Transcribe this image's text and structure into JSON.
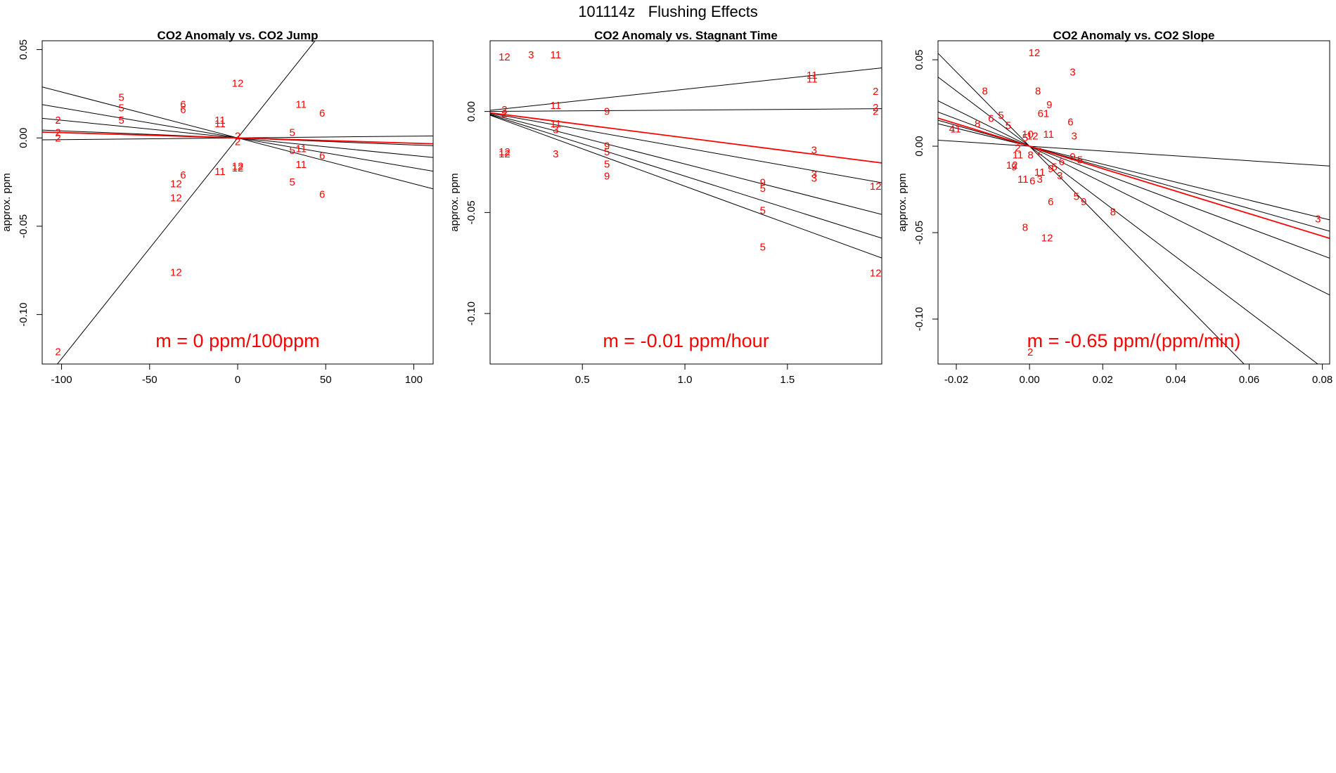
{
  "figure": {
    "title": "101114z",
    "subtitle": "Flushing Effects"
  },
  "colors": {
    "fit": "#ff0000",
    "line": "#000000",
    "label": "#ff0000"
  },
  "chart_data": [
    {
      "type": "scatter",
      "title": "CO2 Anomaly vs. CO2 Jump",
      "ylabel": "approx. ppm",
      "xlabel": "",
      "xlim": [
        -111,
        111
      ],
      "ylim": [
        -0.128,
        0.055
      ],
      "xticks": [
        -100,
        -50,
        0,
        50,
        100
      ],
      "xtick_labels": [
        "-100",
        "-50",
        "0",
        "50",
        "100"
      ],
      "yticks": [
        -0.1,
        -0.05,
        0.0,
        0.05
      ],
      "ytick_labels": [
        "-0.10",
        "-0.05",
        "0.00",
        "0.05"
      ],
      "annotation": "m = 0 ppm/100ppm",
      "points": [
        {
          "x": -66,
          "y": 0.023,
          "label": "5"
        },
        {
          "x": -66,
          "y": 0.017,
          "label": "5"
        },
        {
          "x": -66,
          "y": 0.01,
          "label": "5"
        },
        {
          "x": -102,
          "y": 0.01,
          "label": "2"
        },
        {
          "x": -102,
          "y": 0.003,
          "label": "2"
        },
        {
          "x": -102,
          "y": 0.0,
          "label": "2"
        },
        {
          "x": -31,
          "y": 0.019,
          "label": "6"
        },
        {
          "x": -31,
          "y": 0.016,
          "label": "6"
        },
        {
          "x": -10,
          "y": 0.01,
          "label": "11"
        },
        {
          "x": -10,
          "y": 0.008,
          "label": "11"
        },
        {
          "x": 0,
          "y": 0.031,
          "label": "12"
        },
        {
          "x": 0,
          "y": 0.001,
          "label": "2"
        },
        {
          "x": 0,
          "y": -0.002,
          "label": "2"
        },
        {
          "x": 36,
          "y": 0.019,
          "label": "11"
        },
        {
          "x": 48,
          "y": 0.014,
          "label": "6"
        },
        {
          "x": 31,
          "y": 0.003,
          "label": "5"
        },
        {
          "x": 31,
          "y": -0.007,
          "label": "5"
        },
        {
          "x": 36,
          "y": -0.006,
          "label": "11"
        },
        {
          "x": 48,
          "y": -0.01,
          "label": "6"
        },
        {
          "x": 36,
          "y": -0.015,
          "label": "11"
        },
        {
          "x": 0,
          "y": -0.016,
          "label": "12"
        },
        {
          "x": 0,
          "y": -0.017,
          "label": "12"
        },
        {
          "x": -10,
          "y": -0.019,
          "label": "11"
        },
        {
          "x": -31,
          "y": -0.021,
          "label": "6"
        },
        {
          "x": -35,
          "y": -0.026,
          "label": "12"
        },
        {
          "x": -35,
          "y": -0.034,
          "label": "12"
        },
        {
          "x": 31,
          "y": -0.025,
          "label": "5"
        },
        {
          "x": 48,
          "y": -0.032,
          "label": "6"
        },
        {
          "x": -35,
          "y": -0.076,
          "label": "12"
        },
        {
          "x": -102,
          "y": -0.121,
          "label": "2"
        }
      ],
      "fit_lines": [
        {
          "slope": 0.00125,
          "fit": false
        },
        {
          "slope": -0.00026,
          "fit": false
        },
        {
          "slope": -0.00017,
          "fit": false
        },
        {
          "slope": -0.0001,
          "fit": false
        },
        {
          "slope": 1e-05,
          "fit": false
        },
        {
          "slope": -4e-05,
          "fit": false
        },
        {
          "slope": -3e-05,
          "fit": true
        }
      ]
    },
    {
      "type": "scatter",
      "title": "CO2 Anomaly vs. Stagnant Time",
      "ylabel": "approx. ppm",
      "xlabel": "",
      "xlim": [
        0.05,
        1.96
      ],
      "ylim": [
        -0.125,
        0.035
      ],
      "xticks": [
        0.5,
        1.0,
        1.5
      ],
      "xtick_labels": [
        "0.5",
        "1.0",
        "1.5"
      ],
      "yticks": [
        -0.1,
        -0.05,
        0.0
      ],
      "ytick_labels": [
        "-0.10",
        "-0.05",
        "0.00"
      ],
      "annotation": "m = -0.01 ppm/hour",
      "points": [
        {
          "x": 0.12,
          "y": 0.027,
          "label": "12"
        },
        {
          "x": 0.25,
          "y": 0.028,
          "label": "3"
        },
        {
          "x": 0.37,
          "y": 0.028,
          "label": "11"
        },
        {
          "x": 0.12,
          "y": 0.001,
          "label": "2"
        },
        {
          "x": 0.12,
          "y": -0.001,
          "label": "2"
        },
        {
          "x": 0.37,
          "y": 0.003,
          "label": "11"
        },
        {
          "x": 0.62,
          "y": 0.0,
          "label": "9"
        },
        {
          "x": 0.37,
          "y": -0.006,
          "label": "11"
        },
        {
          "x": 0.37,
          "y": -0.009,
          "label": "3"
        },
        {
          "x": 0.12,
          "y": -0.02,
          "label": "12"
        },
        {
          "x": 0.12,
          "y": -0.021,
          "label": "12"
        },
        {
          "x": 0.37,
          "y": -0.021,
          "label": "3"
        },
        {
          "x": 0.62,
          "y": -0.017,
          "label": "9"
        },
        {
          "x": 0.62,
          "y": -0.02,
          "label": "5"
        },
        {
          "x": 0.62,
          "y": -0.026,
          "label": "5"
        },
        {
          "x": 0.62,
          "y": -0.032,
          "label": "9"
        },
        {
          "x": 1.62,
          "y": 0.018,
          "label": "11"
        },
        {
          "x": 1.62,
          "y": 0.016,
          "label": "11"
        },
        {
          "x": 1.93,
          "y": 0.01,
          "label": "2"
        },
        {
          "x": 1.93,
          "y": 0.002,
          "label": "2"
        },
        {
          "x": 1.93,
          "y": 0.0,
          "label": "2"
        },
        {
          "x": 1.63,
          "y": -0.019,
          "label": "3"
        },
        {
          "x": 1.63,
          "y": -0.031,
          "label": "3"
        },
        {
          "x": 1.63,
          "y": -0.033,
          "label": "3"
        },
        {
          "x": 1.93,
          "y": -0.037,
          "label": "12"
        },
        {
          "x": 1.38,
          "y": -0.035,
          "label": "9"
        },
        {
          "x": 1.38,
          "y": -0.038,
          "label": "5"
        },
        {
          "x": 1.38,
          "y": -0.049,
          "label": "5"
        },
        {
          "x": 1.38,
          "y": -0.067,
          "label": "5"
        },
        {
          "x": 1.93,
          "y": -0.08,
          "label": "12"
        }
      ],
      "fit_lines": [
        {
          "slope": 0.011,
          "fit": false
        },
        {
          "slope": 0.0007,
          "fit": false
        },
        {
          "slope": -0.018,
          "fit": false
        },
        {
          "slope": -0.026,
          "fit": false
        },
        {
          "slope": -0.032,
          "fit": false
        },
        {
          "slope": -0.037,
          "fit": false
        },
        {
          "slope": -0.013,
          "fit": true
        }
      ]
    },
    {
      "type": "scatter",
      "title": "CO2 Anomaly vs. CO2 Slope",
      "ylabel": "approx. ppm",
      "xlabel": "",
      "xlim": [
        -0.025,
        0.082
      ],
      "ylim": [
        -0.126,
        0.061
      ],
      "xticks": [
        -0.02,
        0.0,
        0.02,
        0.04,
        0.06,
        0.08
      ],
      "xtick_labels": [
        "-0.02",
        "0.00",
        "0.02",
        "0.04",
        "0.06",
        "0.08"
      ],
      "yticks": [
        -0.1,
        -0.05,
        0.0,
        0.05
      ],
      "ytick_labels": [
        "-0.10",
        "-0.05",
        "0.00",
        "0.05"
      ],
      "annotation": "m = -0.65 ppm/(ppm/min)",
      "points": [
        {
          "x": 0.0013,
          "y": 0.054,
          "label": "12"
        },
        {
          "x": 0.0118,
          "y": 0.043,
          "label": "3"
        },
        {
          "x": -0.0122,
          "y": 0.032,
          "label": "8"
        },
        {
          "x": 0.0023,
          "y": 0.032,
          "label": "8"
        },
        {
          "x": 0.0054,
          "y": 0.024,
          "label": "9"
        },
        {
          "x": -0.0078,
          "y": 0.018,
          "label": "5"
        },
        {
          "x": -0.0105,
          "y": 0.016,
          "label": "6"
        },
        {
          "x": -0.0058,
          "y": 0.012,
          "label": "5"
        },
        {
          "x": -0.0142,
          "y": 0.013,
          "label": "8"
        },
        {
          "x": 0.0038,
          "y": 0.019,
          "label": "61"
        },
        {
          "x": 0.0112,
          "y": 0.014,
          "label": "6"
        },
        {
          "x": -0.0212,
          "y": 0.01,
          "label": "4"
        },
        {
          "x": -0.0202,
          "y": 0.01,
          "label": "11"
        },
        {
          "x": -0.0005,
          "y": 0.007,
          "label": "10"
        },
        {
          "x": 0.0008,
          "y": 0.006,
          "label": "12"
        },
        {
          "x": -0.0012,
          "y": 0.005,
          "label": "5"
        },
        {
          "x": 0.0052,
          "y": 0.007,
          "label": "11"
        },
        {
          "x": 0.0122,
          "y": 0.006,
          "label": "3"
        },
        {
          "x": -0.0032,
          "y": -0.001,
          "label": "2"
        },
        {
          "x": 0.0028,
          "y": -0.003,
          "label": "2"
        },
        {
          "x": -0.0032,
          "y": -0.005,
          "label": "11"
        },
        {
          "x": 0.0003,
          "y": -0.005,
          "label": "8"
        },
        {
          "x": 0.0118,
          "y": -0.006,
          "label": "9"
        },
        {
          "x": 0.0088,
          "y": -0.009,
          "label": "6"
        },
        {
          "x": 0.0138,
          "y": -0.008,
          "label": "5"
        },
        {
          "x": -0.0048,
          "y": -0.011,
          "label": "12"
        },
        {
          "x": -0.0042,
          "y": -0.012,
          "label": "9"
        },
        {
          "x": 0.0068,
          "y": -0.012,
          "label": "5"
        },
        {
          "x": 0.0058,
          "y": -0.013,
          "label": "9"
        },
        {
          "x": 0.0028,
          "y": -0.015,
          "label": "11"
        },
        {
          "x": 0.0083,
          "y": -0.017,
          "label": "3"
        },
        {
          "x": -0.0018,
          "y": -0.019,
          "label": "11"
        },
        {
          "x": 0.0008,
          "y": -0.02,
          "label": "6"
        },
        {
          "x": 0.0028,
          "y": -0.019,
          "label": "3"
        },
        {
          "x": 0.0128,
          "y": -0.029,
          "label": "5"
        },
        {
          "x": 0.0058,
          "y": -0.032,
          "label": "6"
        },
        {
          "x": 0.0148,
          "y": -0.032,
          "label": "9"
        },
        {
          "x": 0.0228,
          "y": -0.038,
          "label": "8"
        },
        {
          "x": -0.0012,
          "y": -0.047,
          "label": "8"
        },
        {
          "x": 0.0048,
          "y": -0.053,
          "label": "12"
        },
        {
          "x": 0.0788,
          "y": -0.042,
          "label": "3"
        },
        {
          "x": 0.0002,
          "y": -0.119,
          "label": "2"
        }
      ],
      "fit_lines": [
        {
          "slope": -2.15,
          "fit": false
        },
        {
          "slope": -1.6,
          "fit": false
        },
        {
          "slope": -1.05,
          "fit": false
        },
        {
          "slope": -0.79,
          "fit": false
        },
        {
          "slope": -0.6,
          "fit": false
        },
        {
          "slope": -0.52,
          "fit": false
        },
        {
          "slope": -0.14,
          "fit": false
        },
        {
          "slope": -0.65,
          "fit": true
        }
      ]
    }
  ]
}
